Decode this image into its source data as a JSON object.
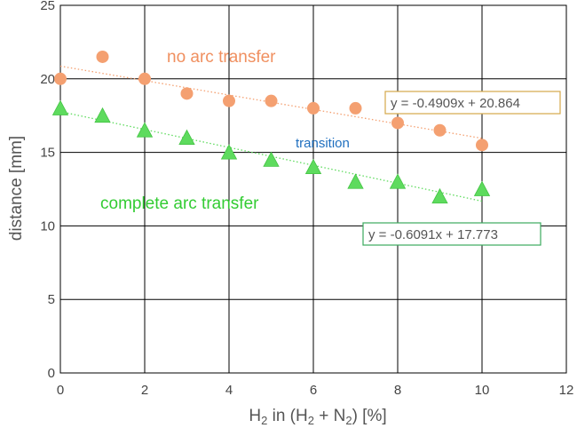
{
  "chart_data": {
    "type": "scatter",
    "xlabel_parts": [
      "H",
      "2",
      " in (H",
      "2",
      " + N",
      "2",
      ") [%]"
    ],
    "ylabel": "distance [mm]",
    "xlim": [
      0,
      12
    ],
    "ylim": [
      0,
      25
    ],
    "xticks": [
      0,
      2,
      4,
      6,
      8,
      10,
      12
    ],
    "yticks": [
      0,
      5,
      10,
      15,
      20,
      25
    ],
    "grid": true,
    "series": [
      {
        "marker": "circle",
        "color": "#F4A071",
        "x": [
          0,
          1,
          2,
          3,
          4,
          5,
          6,
          7,
          8,
          9,
          10
        ],
        "y": [
          20,
          21.5,
          20,
          19,
          18.5,
          18.5,
          18,
          18,
          17,
          16.5,
          15.5
        ],
        "trendline": {
          "slope": -0.4909,
          "intercept": 20.864,
          "x_range": [
            0,
            10
          ],
          "label": "y = -0.4909x + 20.864",
          "box_color": "#D4A84A"
        }
      },
      {
        "marker": "triangle",
        "color": "#5EDB5E",
        "x": [
          0,
          1,
          2,
          3,
          4,
          5,
          6,
          7,
          8,
          9,
          10
        ],
        "y": [
          18,
          17.5,
          16.5,
          16,
          15,
          14.5,
          14,
          13,
          13,
          12,
          12.5
        ],
        "trendline": {
          "slope": -0.6091,
          "intercept": 17.773,
          "x_range": [
            0,
            10
          ],
          "label": "y = -0.6091x + 17.773",
          "box_color": "#3BAA5E"
        }
      }
    ],
    "annotations": [
      {
        "text": "no arc transfer",
        "color": "#F09060"
      },
      {
        "text": "transition",
        "color": "#1F6FBF"
      },
      {
        "text": "complete arc transfer",
        "color": "#33CC33"
      }
    ]
  }
}
